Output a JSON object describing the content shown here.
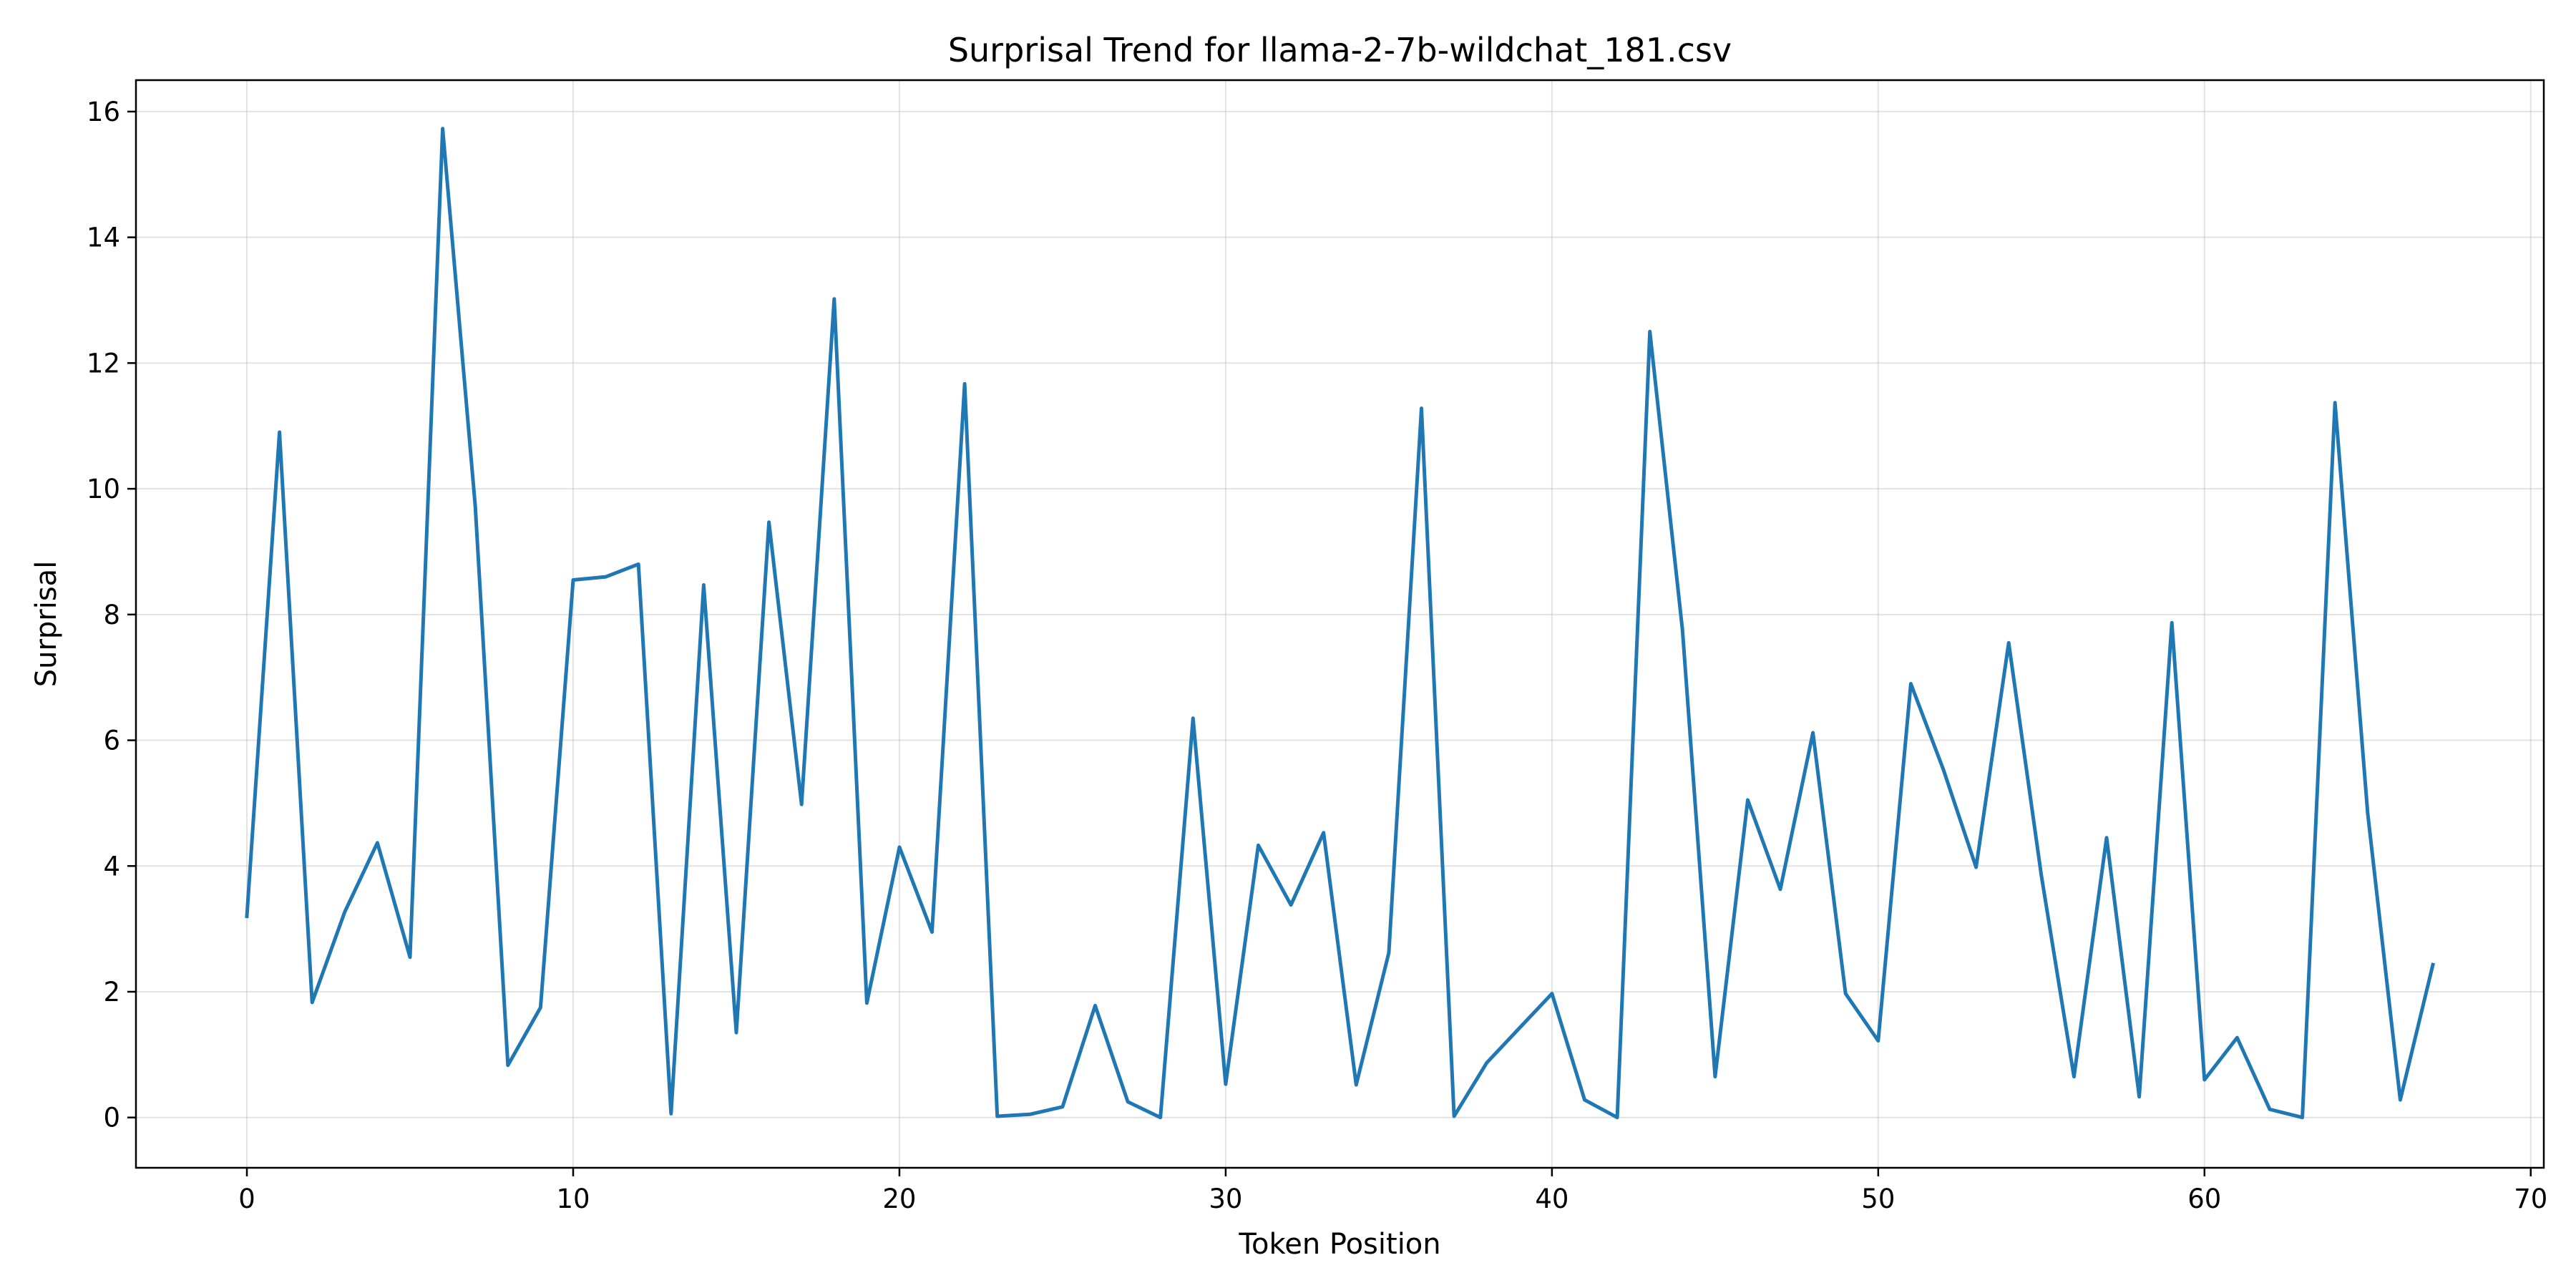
{
  "chart_data": {
    "type": "line",
    "title": "Surprisal Trend for llama-2-7b-wildchat_181.csv",
    "xlabel": "Token Position",
    "ylabel": "Surprisal",
    "xlim": [
      -3.4,
      70.4
    ],
    "ylim": [
      -0.8,
      16.5
    ],
    "xticks": [
      0,
      10,
      20,
      30,
      40,
      50,
      60,
      70
    ],
    "yticks": [
      0,
      2,
      4,
      6,
      8,
      10,
      12,
      14,
      16
    ],
    "grid": true,
    "legend": "none",
    "series": [
      {
        "color": "#1f77b4",
        "x": [
          0,
          1,
          2,
          3,
          4,
          5,
          6,
          7,
          8,
          9,
          10,
          11,
          12,
          13,
          14,
          15,
          16,
          17,
          18,
          19,
          20,
          21,
          22,
          23,
          24,
          25,
          26,
          27,
          28,
          29,
          30,
          31,
          32,
          33,
          34,
          35,
          36,
          37,
          38,
          39,
          40,
          41,
          42,
          43,
          44,
          45,
          46,
          47,
          48,
          49,
          50,
          51,
          52,
          53,
          54,
          55,
          56,
          57,
          58,
          59,
          60,
          61,
          62,
          63,
          64,
          65,
          66,
          67
        ],
        "values": [
          3.2,
          10.9,
          1.83,
          3.27,
          4.37,
          2.55,
          15.73,
          9.72,
          0.83,
          1.75,
          8.55,
          8.6,
          8.8,
          0.06,
          8.47,
          1.35,
          9.47,
          4.98,
          13.02,
          1.82,
          4.3,
          2.95,
          11.67,
          0.02,
          0.05,
          0.17,
          1.78,
          0.25,
          0.0,
          6.35,
          0.53,
          4.33,
          3.38,
          4.53,
          0.52,
          2.62,
          11.28,
          0.02,
          0.87,
          1.42,
          1.97,
          0.28,
          0.0,
          12.5,
          7.75,
          0.65,
          5.05,
          3.63,
          6.12,
          1.97,
          1.22,
          6.9,
          5.53,
          3.98,
          7.55,
          3.85,
          0.65,
          4.45,
          0.33,
          7.87,
          0.6,
          1.27,
          0.13,
          0.0,
          11.37,
          4.85,
          0.28,
          2.43
        ]
      }
    ]
  }
}
